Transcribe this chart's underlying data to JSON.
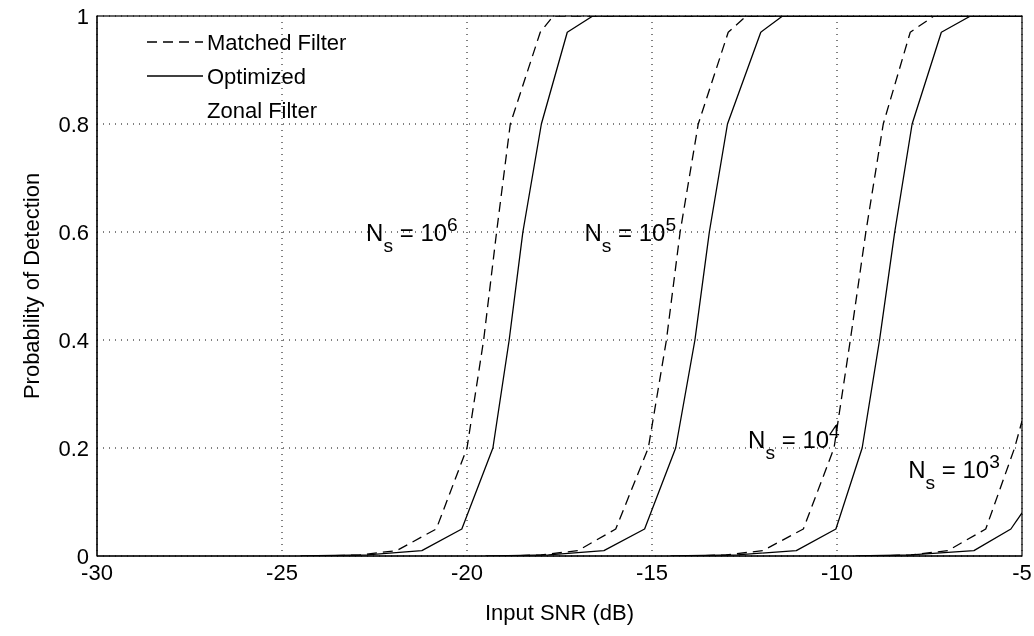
{
  "chart_data": {
    "type": "line",
    "xlabel": "Input SNR (dB)",
    "ylabel": "Probability of Detection",
    "xlim": [
      -30,
      -5
    ],
    "xticks": [
      -30,
      -25,
      -20,
      -15,
      -10,
      -5
    ],
    "ylim": [
      0,
      1
    ],
    "yticks": [
      0,
      0.2,
      0.4,
      0.6,
      0.8,
      1
    ],
    "grid": true,
    "legend": "top left",
    "marker": "none",
    "series": [
      {
        "name": "Matched Filter",
        "color": "#000000",
        "line_style": "dashed",
        "x": [
          -24,
          -22.9,
          -21.9,
          -20.83,
          -20.0,
          -19.55,
          -19.2,
          -18.83,
          -18.02,
          -17.67,
          -5
        ],
        "values": [
          0,
          0.002,
          0.01,
          0.05,
          0.2,
          0.4,
          0.6,
          0.8,
          0.97,
          1,
          1
        ]
      },
      {
        "name": "Optimized Zonal Filter",
        "color": "#000000",
        "line_style": "solid",
        "x": [
          -24.5,
          -22.7,
          -21.22,
          -20.14,
          -19.3,
          -18.86,
          -18.49,
          -17.99,
          -17.29,
          -16.6,
          -5
        ],
        "values": [
          0,
          0.002,
          0.01,
          0.05,
          0.2,
          0.4,
          0.6,
          0.8,
          0.97,
          1,
          1
        ]
      },
      {
        "color": "#000000",
        "line_style": "dashed",
        "x": [
          -19,
          -18.0,
          -17.0,
          -15.98,
          -15.1,
          -14.61,
          -14.24,
          -13.75,
          -12.94,
          -12.45,
          -5
        ],
        "values": [
          0,
          0.002,
          0.01,
          0.05,
          0.2,
          0.4,
          0.6,
          0.8,
          0.97,
          1,
          1
        ]
      },
      {
        "color": "#000000",
        "line_style": "solid",
        "x": [
          -19.5,
          -17.8,
          -16.3,
          -15.2,
          -14.36,
          -13.84,
          -13.45,
          -12.96,
          -12.06,
          -11.47,
          -5
        ],
        "values": [
          0,
          0.002,
          0.01,
          0.05,
          0.2,
          0.4,
          0.6,
          0.8,
          0.97,
          1,
          1
        ]
      },
      {
        "color": "#000000",
        "line_style": "dashed",
        "x": [
          -14,
          -13.0,
          -12.0,
          -10.91,
          -10.08,
          -9.64,
          -9.22,
          -8.75,
          -8.02,
          -7.38,
          -5
        ],
        "values": [
          0,
          0.002,
          0.01,
          0.05,
          0.2,
          0.4,
          0.6,
          0.8,
          0.97,
          1,
          1
        ]
      },
      {
        "color": "#000000",
        "line_style": "solid",
        "x": [
          -14.5,
          -12.7,
          -11.1,
          -10.03,
          -9.32,
          -8.85,
          -8.44,
          -7.97,
          -7.18,
          -6.39,
          -5
        ],
        "values": [
          0,
          0.002,
          0.01,
          0.05,
          0.2,
          0.4,
          0.6,
          0.8,
          0.97,
          1,
          1
        ]
      },
      {
        "color": "#000000",
        "line_style": "dashed",
        "x": [
          -9,
          -8.0,
          -7.0,
          -5.98,
          -5.2,
          -5
        ],
        "values": [
          0,
          0.002,
          0.01,
          0.05,
          0.2,
          0.25
        ]
      },
      {
        "color": "#000000",
        "line_style": "solid",
        "x": [
          -9.5,
          -8.0,
          -6.3,
          -5.3,
          -5
        ],
        "values": [
          0,
          0.002,
          0.01,
          0.05,
          0.08
        ]
      }
    ],
    "annotations": [
      "N$_{s}$ = 10$^{6}$",
      "N$_{s}$ = 10$^{5}$",
      "N$_{s}$ = 10$^{4}$",
      "N$_{s}$ = 10$^{3}$"
    ]
  }
}
